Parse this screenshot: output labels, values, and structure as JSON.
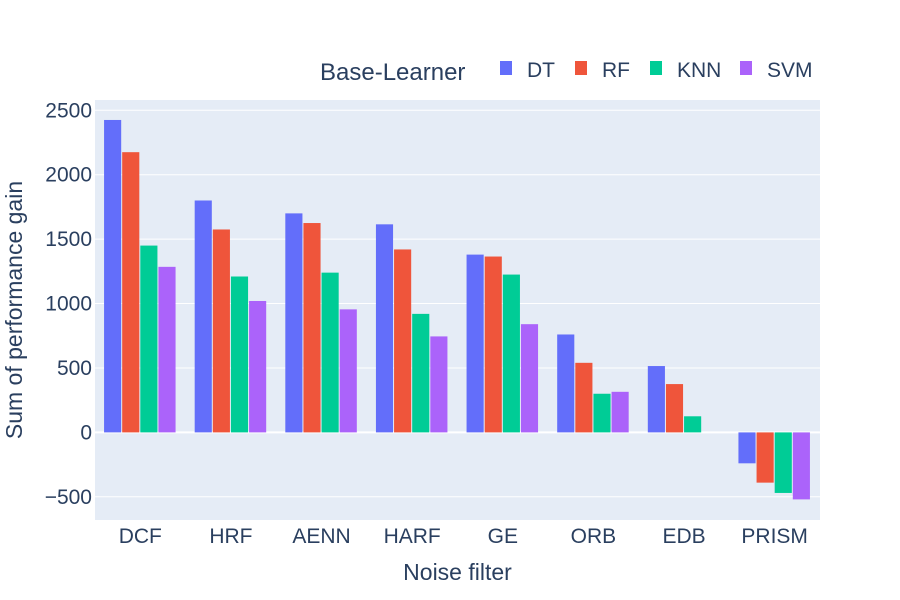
{
  "chart_data": {
    "type": "bar",
    "xlabel": "Noise filter",
    "ylabel": "Sum of performance gain",
    "legend_title": "Base-Learner",
    "legend_position": "top-right",
    "categories": [
      "DCF",
      "HRF",
      "AENN",
      "HARF",
      "GE",
      "ORB",
      "EDB",
      "PRISM"
    ],
    "series": [
      {
        "name": "DT",
        "color": "#636efa",
        "values": [
          2425,
          1800,
          1700,
          1615,
          1380,
          760,
          515,
          -240
        ]
      },
      {
        "name": "RF",
        "color": "#ef553b",
        "values": [
          2175,
          1575,
          1625,
          1420,
          1365,
          540,
          375,
          -390
        ]
      },
      {
        "name": "KNN",
        "color": "#00cc96",
        "values": [
          1450,
          1210,
          1240,
          920,
          1225,
          300,
          125,
          -470
        ]
      },
      {
        "name": "SVM",
        "color": "#ab63fa",
        "values": [
          1285,
          1020,
          955,
          745,
          840,
          315,
          0,
          -520
        ]
      }
    ],
    "ylim": [
      -680,
      2580
    ],
    "yticks": [
      -500,
      0,
      500,
      1000,
      1500,
      2000,
      2500
    ],
    "ytick_labels": [
      "−500",
      "0",
      "500",
      "1000",
      "1500",
      "2000",
      "2500"
    ],
    "grid": true,
    "plot_bg": "#e5ecf6",
    "grid_color": "#ffffff"
  }
}
